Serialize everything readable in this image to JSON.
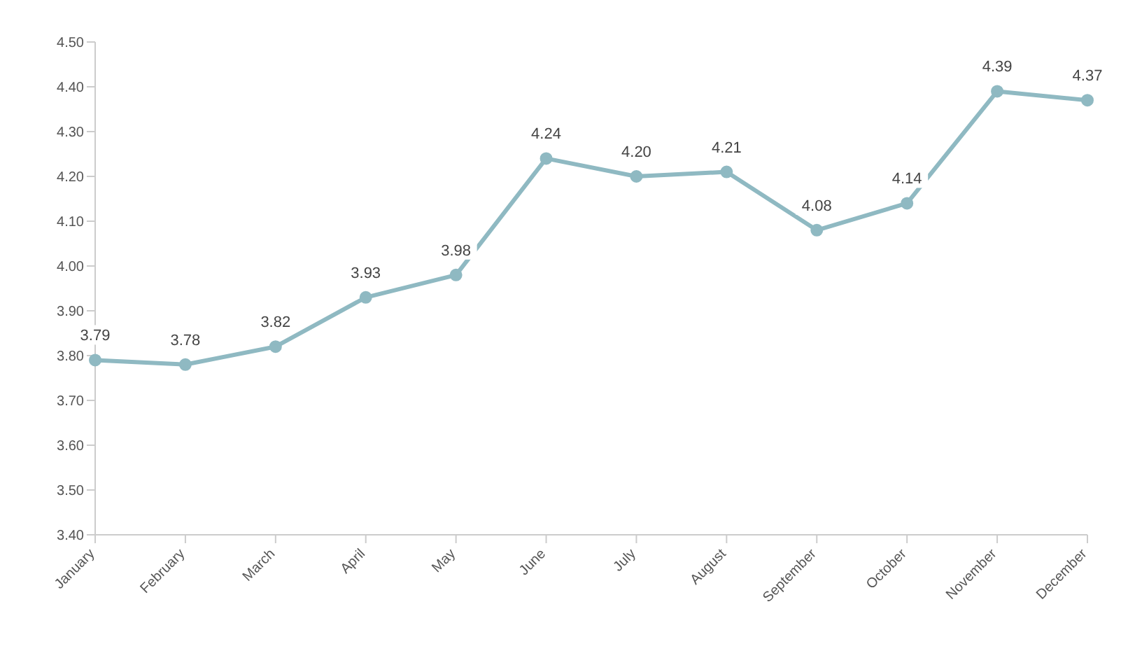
{
  "chart_data": {
    "type": "line",
    "categories": [
      "January",
      "February",
      "March",
      "April",
      "May",
      "June",
      "July",
      "August",
      "September",
      "October",
      "November",
      "December"
    ],
    "values": [
      3.79,
      3.78,
      3.82,
      3.93,
      3.98,
      4.24,
      4.2,
      4.21,
      4.08,
      4.14,
      4.39,
      4.37
    ],
    "color": "#8fb9c2",
    "ylim": [
      3.4,
      4.5
    ],
    "yticks": [
      {
        "value": 3.4,
        "label": "3.40"
      },
      {
        "value": 3.5,
        "label": "3.50"
      },
      {
        "value": 3.6,
        "label": "3.60"
      },
      {
        "value": 3.7,
        "label": "3.70"
      },
      {
        "value": 3.8,
        "label": "3.80"
      },
      {
        "value": 3.9,
        "label": "3.90"
      },
      {
        "value": 4.0,
        "label": "4.00"
      },
      {
        "value": 4.1,
        "label": "4.10"
      },
      {
        "value": 4.2,
        "label": "4.20"
      },
      {
        "value": 4.3,
        "label": "4.30"
      },
      {
        "value": 4.4,
        "label": "4.40"
      },
      {
        "value": 4.5,
        "label": "4.50"
      }
    ],
    "value_labels": [
      "3.79",
      "3.78",
      "3.82",
      "3.93",
      "3.98",
      "4.24",
      "4.20",
      "4.21",
      "4.08",
      "4.14",
      "4.39",
      "4.37"
    ],
    "marker": "circle",
    "grid": false,
    "legend": false
  }
}
